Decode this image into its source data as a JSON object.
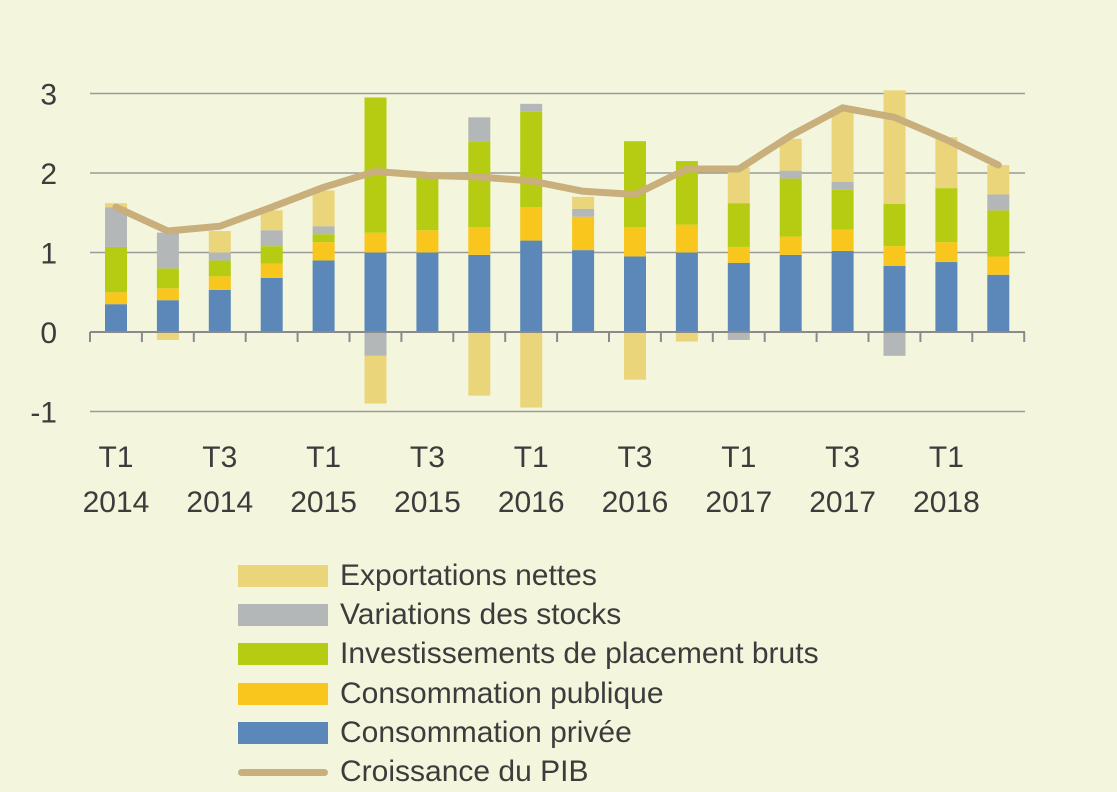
{
  "chart_data": {
    "type": "bar",
    "stacked": true,
    "categories": [
      "T1 2014",
      "T2 2014",
      "T3 2014",
      "T4 2014",
      "T1 2015",
      "T2 2015",
      "T3 2015",
      "T4 2015",
      "T1 2016",
      "T2 2016",
      "T3 2016",
      "T4 2016",
      "T1 2017",
      "T2 2017",
      "T3 2017",
      "T4 2017",
      "T1 2018",
      "T2 2018"
    ],
    "x_tick_labels": [
      {
        "line1": "T1",
        "line2": "2014"
      },
      {
        "line1": "T3",
        "line2": "2014"
      },
      {
        "line1": "T1",
        "line2": "2015"
      },
      {
        "line1": "T3",
        "line2": "2015"
      },
      {
        "line1": "T1",
        "line2": "2016"
      },
      {
        "line1": "T3",
        "line2": "2016"
      },
      {
        "line1": "T1",
        "line2": "2017"
      },
      {
        "line1": "T3",
        "line2": "2017"
      },
      {
        "line1": "T1",
        "line2": "2018"
      }
    ],
    "y_ticks": [
      3,
      2,
      1,
      0,
      -1
    ],
    "ylim": [
      -1,
      3
    ],
    "grid": true,
    "legend_position": "bottom",
    "series": [
      {
        "name": "Consommation privée",
        "color": "#5b88b8",
        "values": [
          0.35,
          0.4,
          0.53,
          0.68,
          0.9,
          1.0,
          1.0,
          0.97,
          1.15,
          1.03,
          0.95,
          1.0,
          0.87,
          0.97,
          1.02,
          0.83,
          0.88,
          0.72
        ]
      },
      {
        "name": "Consommation publique",
        "color": "#f8c61c",
        "values": [
          0.15,
          0.15,
          0.17,
          0.18,
          0.23,
          0.25,
          0.28,
          0.35,
          0.42,
          0.42,
          0.37,
          0.35,
          0.2,
          0.23,
          0.27,
          0.25,
          0.25,
          0.23
        ]
      },
      {
        "name": "Investissements de placement bruts",
        "color": "#b5cc12",
        "values": [
          0.57,
          0.25,
          0.2,
          0.22,
          0.1,
          1.7,
          0.7,
          1.08,
          1.2,
          0.0,
          1.08,
          0.8,
          0.55,
          0.73,
          0.5,
          0.53,
          0.68,
          0.58
        ]
      },
      {
        "name": "Variations des stocks",
        "color": "#b3b7b8",
        "values": [
          0.5,
          0.45,
          0.1,
          0.2,
          0.1,
          -0.3,
          0.0,
          0.3,
          0.1,
          0.1,
          0.0,
          0.0,
          -0.1,
          0.1,
          0.1,
          -0.3,
          0.0,
          0.2
        ]
      },
      {
        "name": "Exportations nettes",
        "color": "#ebd57a",
        "values": [
          0.05,
          -0.1,
          0.27,
          0.25,
          0.45,
          -0.6,
          0.0,
          -0.8,
          -0.95,
          0.15,
          -0.6,
          -0.12,
          0.45,
          0.4,
          0.91,
          1.43,
          0.64,
          0.37
        ]
      },
      {
        "name": "Croissance du PIB",
        "type": "line",
        "color": "#c8af7c",
        "values": [
          1.57,
          1.27,
          1.33,
          1.57,
          1.82,
          2.02,
          1.97,
          1.95,
          1.9,
          1.77,
          1.73,
          2.05,
          2.05,
          2.47,
          2.82,
          2.7,
          2.42,
          2.1
        ]
      }
    ]
  },
  "legend": {
    "items": [
      {
        "label": "Exportations nettes",
        "color": "#ebd57a",
        "kind": "bar"
      },
      {
        "label": "Variations des stocks",
        "color": "#b3b7b8",
        "kind": "bar"
      },
      {
        "label": "Investissements de placement bruts",
        "color": "#b5cc12",
        "kind": "bar"
      },
      {
        "label": "Consommation publique",
        "color": "#f8c61c",
        "kind": "bar"
      },
      {
        "label": "Consommation privée",
        "color": "#5b88b8",
        "kind": "bar"
      },
      {
        "label": "Croissance du PIB",
        "color": "#c8af7c",
        "kind": "line"
      }
    ]
  }
}
